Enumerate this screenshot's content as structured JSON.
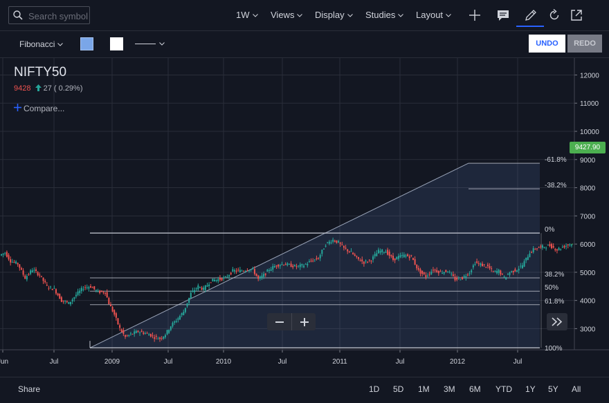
{
  "header": {
    "search_placeholder": "Search symbol",
    "interval": "1W",
    "menus": [
      "Views",
      "Display",
      "Studies",
      "Layout"
    ]
  },
  "drawing_toolbar": {
    "tool": "Fibonacci",
    "fill_color": "#7aa6e8",
    "line_color": "#ffffff",
    "undo_label": "UNDO",
    "redo_label": "REDO"
  },
  "legend": {
    "symbol": "NIFTY50",
    "last": "9428",
    "change": "27",
    "change_pct": "( 0.29%)",
    "compare_label": "Compare..."
  },
  "price_tag": "9427.90",
  "chart_data": {
    "type": "candlestick",
    "y_ticks": [
      3000,
      4000,
      5000,
      6000,
      7000,
      8000,
      9000,
      10000,
      11000,
      12000
    ],
    "ylim": [
      2250,
      12600
    ],
    "x_ticks": [
      "Jun",
      "Jul",
      "2009",
      "Jul",
      "2010",
      "Jul",
      "2011",
      "Jul",
      "2012",
      "Jul"
    ],
    "grid": true,
    "fibonacci_levels": [
      {
        "label": "-61.8%",
        "value": 8870
      },
      {
        "label": "-38.2%",
        "value": 7960
      },
      {
        "label": "0%",
        "value": 6390
      },
      {
        "label": "38.2%",
        "value": 4800
      },
      {
        "label": "50%",
        "value": 4330
      },
      {
        "label": "61.8%",
        "value": 3850
      },
      {
        "label": "100%",
        "value": 2320
      }
    ],
    "series_points": [
      [
        0,
        5600
      ],
      [
        3,
        5700
      ],
      [
        6,
        5400
      ],
      [
        10,
        5300
      ],
      [
        14,
        4800
      ],
      [
        18,
        5100
      ],
      [
        22,
        4900
      ],
      [
        26,
        4500
      ],
      [
        30,
        4400
      ],
      [
        34,
        4000
      ],
      [
        38,
        3900
      ],
      [
        42,
        4200
      ],
      [
        46,
        4450
      ],
      [
        50,
        4500
      ],
      [
        54,
        4300
      ],
      [
        58,
        4300
      ],
      [
        60,
        3900
      ],
      [
        63,
        3500
      ],
      [
        66,
        3000
      ],
      [
        69,
        2700
      ],
      [
        72,
        2800
      ],
      [
        76,
        2900
      ],
      [
        79,
        2850
      ],
      [
        82,
        2800
      ],
      [
        85,
        2700
      ],
      [
        88,
        2650
      ],
      [
        91,
        2800
      ],
      [
        94,
        3100
      ],
      [
        97,
        3300
      ],
      [
        101,
        3600
      ],
      [
        105,
        4250
      ],
      [
        109,
        4500
      ],
      [
        112,
        4400
      ],
      [
        116,
        4700
      ],
      [
        120,
        4750
      ],
      [
        124,
        4800
      ],
      [
        128,
        5050
      ],
      [
        132,
        5050
      ],
      [
        136,
        5100
      ],
      [
        139,
        5100
      ],
      [
        142,
        4750
      ],
      [
        145,
        4900
      ],
      [
        148,
        5100
      ],
      [
        152,
        5250
      ],
      [
        156,
        5300
      ],
      [
        159,
        5250
      ],
      [
        163,
        5200
      ],
      [
        167,
        5250
      ],
      [
        171,
        5400
      ],
      [
        175,
        5500
      ],
      [
        179,
        6000
      ],
      [
        183,
        6150
      ],
      [
        186,
        6050
      ],
      [
        189,
        5850
      ],
      [
        193,
        5700
      ],
      [
        196,
        5500
      ],
      [
        200,
        5350
      ],
      [
        204,
        5450
      ],
      [
        208,
        5750
      ],
      [
        212,
        5750
      ],
      [
        216,
        5450
      ],
      [
        219,
        5550
      ],
      [
        222,
        5600
      ],
      [
        226,
        5550
      ],
      [
        230,
        5050
      ],
      [
        234,
        4850
      ],
      [
        238,
        5100
      ],
      [
        242,
        5000
      ],
      [
        246,
        5050
      ],
      [
        250,
        4750
      ],
      [
        254,
        4800
      ],
      [
        258,
        5000
      ],
      [
        261,
        5350
      ],
      [
        265,
        5250
      ],
      [
        268,
        5200
      ],
      [
        271,
        5000
      ],
      [
        274,
        5050
      ],
      [
        277,
        4800
      ],
      [
        280,
        5000
      ],
      [
        284,
        5100
      ],
      [
        287,
        5250
      ],
      [
        291,
        5700
      ],
      [
        294,
        5850
      ],
      [
        298,
        5900
      ],
      [
        302,
        5950
      ],
      [
        306,
        5800
      ],
      [
        309,
        5900
      ],
      [
        313,
        6000
      ]
    ]
  },
  "bottom": {
    "share_label": "Share",
    "ranges": [
      "1D",
      "5D",
      "1M",
      "3M",
      "6M",
      "YTD",
      "1Y",
      "5Y",
      "All"
    ]
  }
}
